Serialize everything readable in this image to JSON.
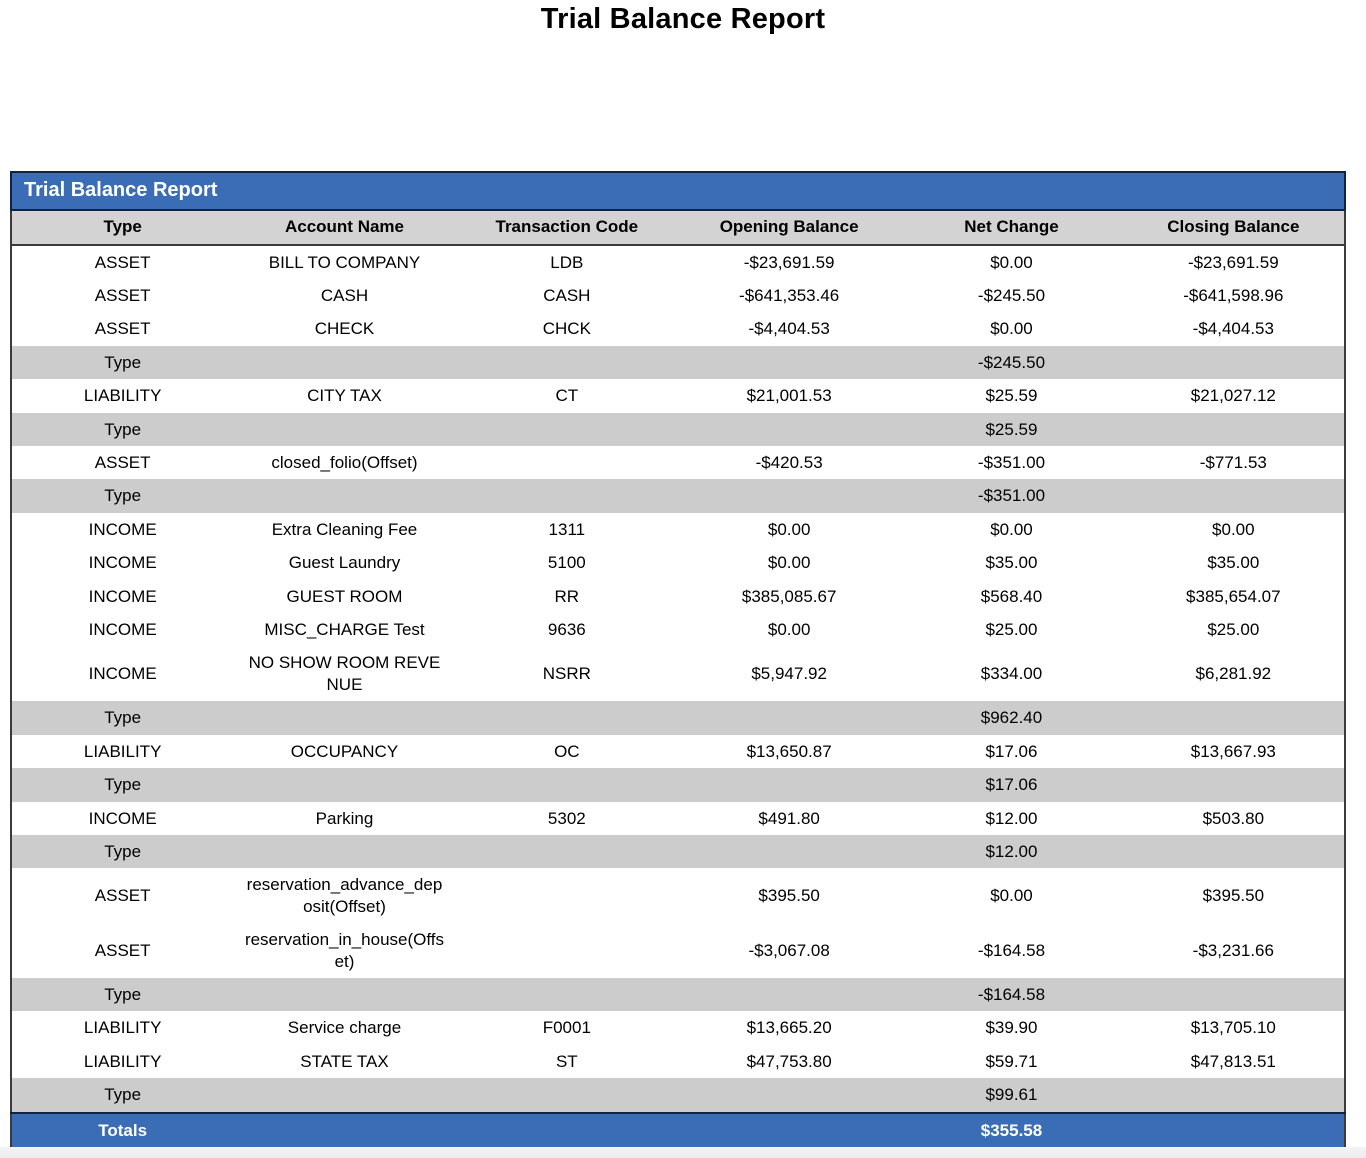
{
  "page": {
    "title": "Trial Balance Report"
  },
  "report": {
    "banner_title": "Trial Balance Report",
    "columns": [
      "Type",
      "Account Name",
      "Transaction Code",
      "Opening Balance",
      "Net Change",
      "Closing Balance"
    ],
    "rows": [
      {
        "kind": "data",
        "type": "ASSET",
        "account": "BILL TO COMPANY",
        "code": "LDB",
        "opening": "-$23,691.59",
        "net": "$0.00",
        "closing": "-$23,691.59"
      },
      {
        "kind": "data",
        "type": "ASSET",
        "account": "CASH",
        "code": "CASH",
        "opening": "-$641,353.46",
        "net": "-$245.50",
        "closing": "-$641,598.96"
      },
      {
        "kind": "data",
        "type": "ASSET",
        "account": "CHECK",
        "code": "CHCK",
        "opening": "-$4,404.53",
        "net": "$0.00",
        "closing": "-$4,404.53"
      },
      {
        "kind": "subtotal",
        "label": "Type",
        "net": "-$245.50"
      },
      {
        "kind": "data",
        "type": "LIABILITY",
        "account": "CITY TAX",
        "code": "CT",
        "opening": "$21,001.53",
        "net": "$25.59",
        "closing": "$21,027.12"
      },
      {
        "kind": "subtotal",
        "label": "Type",
        "net": "$25.59"
      },
      {
        "kind": "data",
        "type": "ASSET",
        "account": "closed_folio(Offset)",
        "code": "",
        "opening": "-$420.53",
        "net": "-$351.00",
        "closing": "-$771.53"
      },
      {
        "kind": "subtotal",
        "label": "Type",
        "net": "-$351.00"
      },
      {
        "kind": "data",
        "type": "INCOME",
        "account": "Extra Cleaning Fee",
        "code": "1311",
        "opening": "$0.00",
        "net": "$0.00",
        "closing": "$0.00"
      },
      {
        "kind": "data",
        "type": "INCOME",
        "account": "Guest Laundry",
        "code": "5100",
        "opening": "$0.00",
        "net": "$35.00",
        "closing": "$35.00"
      },
      {
        "kind": "data",
        "type": "INCOME",
        "account": "GUEST ROOM",
        "code": "RR",
        "opening": "$385,085.67",
        "net": "$568.40",
        "closing": "$385,654.07"
      },
      {
        "kind": "data",
        "type": "INCOME",
        "account": "MISC_CHARGE Test",
        "code": "9636",
        "opening": "$0.00",
        "net": "$25.00",
        "closing": "$25.00"
      },
      {
        "kind": "data",
        "type": "INCOME",
        "account": "NO SHOW ROOM REVENUE",
        "code": "NSRR",
        "opening": "$5,947.92",
        "net": "$334.00",
        "closing": "$6,281.92"
      },
      {
        "kind": "subtotal",
        "label": "Type",
        "net": "$962.40"
      },
      {
        "kind": "data",
        "type": "LIABILITY",
        "account": "OCCUPANCY",
        "code": "OC",
        "opening": "$13,650.87",
        "net": "$17.06",
        "closing": "$13,667.93"
      },
      {
        "kind": "subtotal",
        "label": "Type",
        "net": "$17.06"
      },
      {
        "kind": "data",
        "type": "INCOME",
        "account": "Parking",
        "code": "5302",
        "opening": "$491.80",
        "net": "$12.00",
        "closing": "$503.80"
      },
      {
        "kind": "subtotal",
        "label": "Type",
        "net": "$12.00"
      },
      {
        "kind": "data",
        "type": "ASSET",
        "account": "reservation_advance_deposit(Offset)",
        "code": "",
        "opening": "$395.50",
        "net": "$0.00",
        "closing": "$395.50"
      },
      {
        "kind": "data",
        "type": "ASSET",
        "account": "reservation_in_house(Offset)",
        "code": "",
        "opening": "-$3,067.08",
        "net": "-$164.58",
        "closing": "-$3,231.66"
      },
      {
        "kind": "subtotal",
        "label": "Type",
        "net": "-$164.58"
      },
      {
        "kind": "data",
        "type": "LIABILITY",
        "account": "Service charge",
        "code": "F0001",
        "opening": "$13,665.20",
        "net": "$39.90",
        "closing": "$13,705.10"
      },
      {
        "kind": "data",
        "type": "LIABILITY",
        "account": "STATE TAX",
        "code": "ST",
        "opening": "$47,753.80",
        "net": "$59.71",
        "closing": "$47,813.51"
      },
      {
        "kind": "subtotal",
        "label": "Type",
        "net": "$99.61"
      },
      {
        "kind": "totals",
        "label": "Totals",
        "net": "$355.58"
      }
    ],
    "colors": {
      "banner_blue": "#3A6DB5",
      "banner_border_navy": "#10243E",
      "header_gray": "#D3D3D3",
      "subtotal_gray": "#CCCCCC",
      "outer_border": "#3A3A3A"
    }
  }
}
